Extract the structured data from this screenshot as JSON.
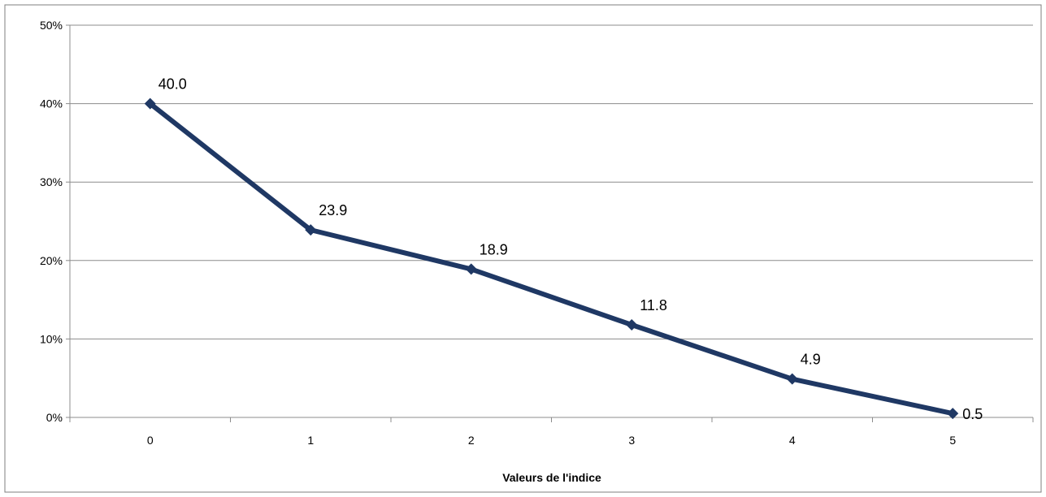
{
  "chart_data": {
    "type": "line",
    "title": "",
    "xlabel": "Valeurs de l'indice",
    "ylabel": "",
    "categories": [
      "0",
      "1",
      "2",
      "3",
      "4",
      "5"
    ],
    "series": [
      {
        "values": [
          40.0,
          23.9,
          18.9,
          11.8,
          4.9,
          0.5
        ],
        "data_labels": [
          "40.0",
          "23.9",
          "18.9",
          "11.8",
          "4.9",
          "0.5"
        ]
      }
    ],
    "ylim": [
      0,
      50
    ],
    "yticks": [
      0,
      10,
      20,
      30,
      40,
      50
    ],
    "ytick_labels": [
      "0%",
      "10%",
      "20%",
      "30%",
      "40%",
      "50%"
    ],
    "grid": true,
    "legend": "none",
    "colors": {
      "line": "#1f3864",
      "marker": "#1f3864",
      "grid": "#8c8c8c",
      "axis": "#8c8c8c",
      "border": "#7f7f7f"
    }
  }
}
